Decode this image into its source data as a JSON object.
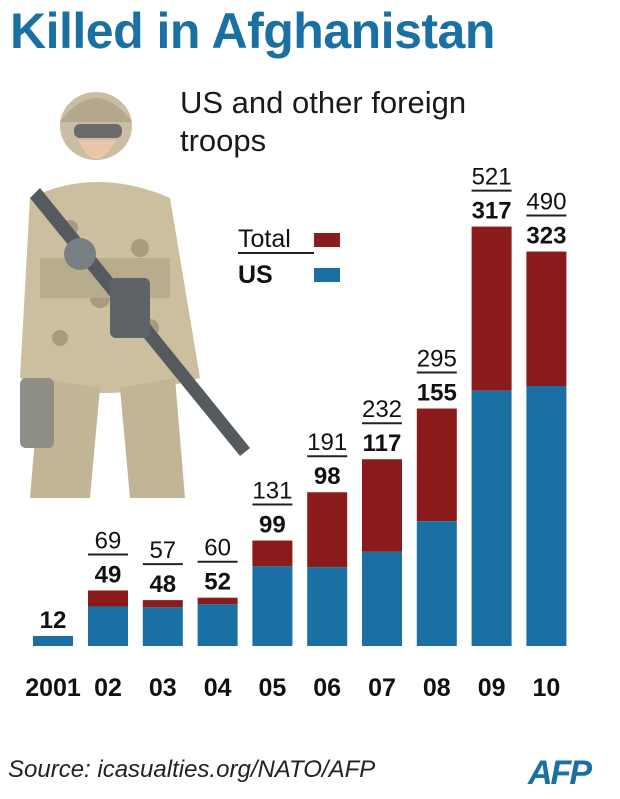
{
  "title": "Killed in Afghanistan",
  "subtitle": "US and other foreign troops",
  "legend": {
    "total_label": "Total",
    "us_label": "US"
  },
  "colors": {
    "total": "#8b1a1a",
    "us": "#1a6fa3",
    "title": "#1a6fa3"
  },
  "source": "Source: icasualties.org/NATO/AFP",
  "logo": "AFP",
  "chart_data": {
    "type": "bar",
    "stacked": true,
    "categories": [
      "2001",
      "02",
      "03",
      "04",
      "05",
      "06",
      "07",
      "08",
      "09",
      "10"
    ],
    "series": [
      {
        "name": "US",
        "values": [
          12,
          49,
          48,
          52,
          99,
          98,
          117,
          155,
          317,
          323
        ]
      },
      {
        "name": "Total",
        "values": [
          12,
          69,
          57,
          60,
          131,
          191,
          232,
          295,
          521,
          490
        ]
      }
    ],
    "total_labels": [
      "",
      "69",
      "57",
      "60",
      "131",
      "191",
      "232",
      "295",
      "521",
      "490"
    ],
    "us_labels": [
      "12",
      "49",
      "48",
      "52",
      "99",
      "98",
      "117",
      "155",
      "317",
      "323"
    ],
    "ylim": [
      0,
      521
    ],
    "grid": false,
    "legend_position": "top-center"
  }
}
